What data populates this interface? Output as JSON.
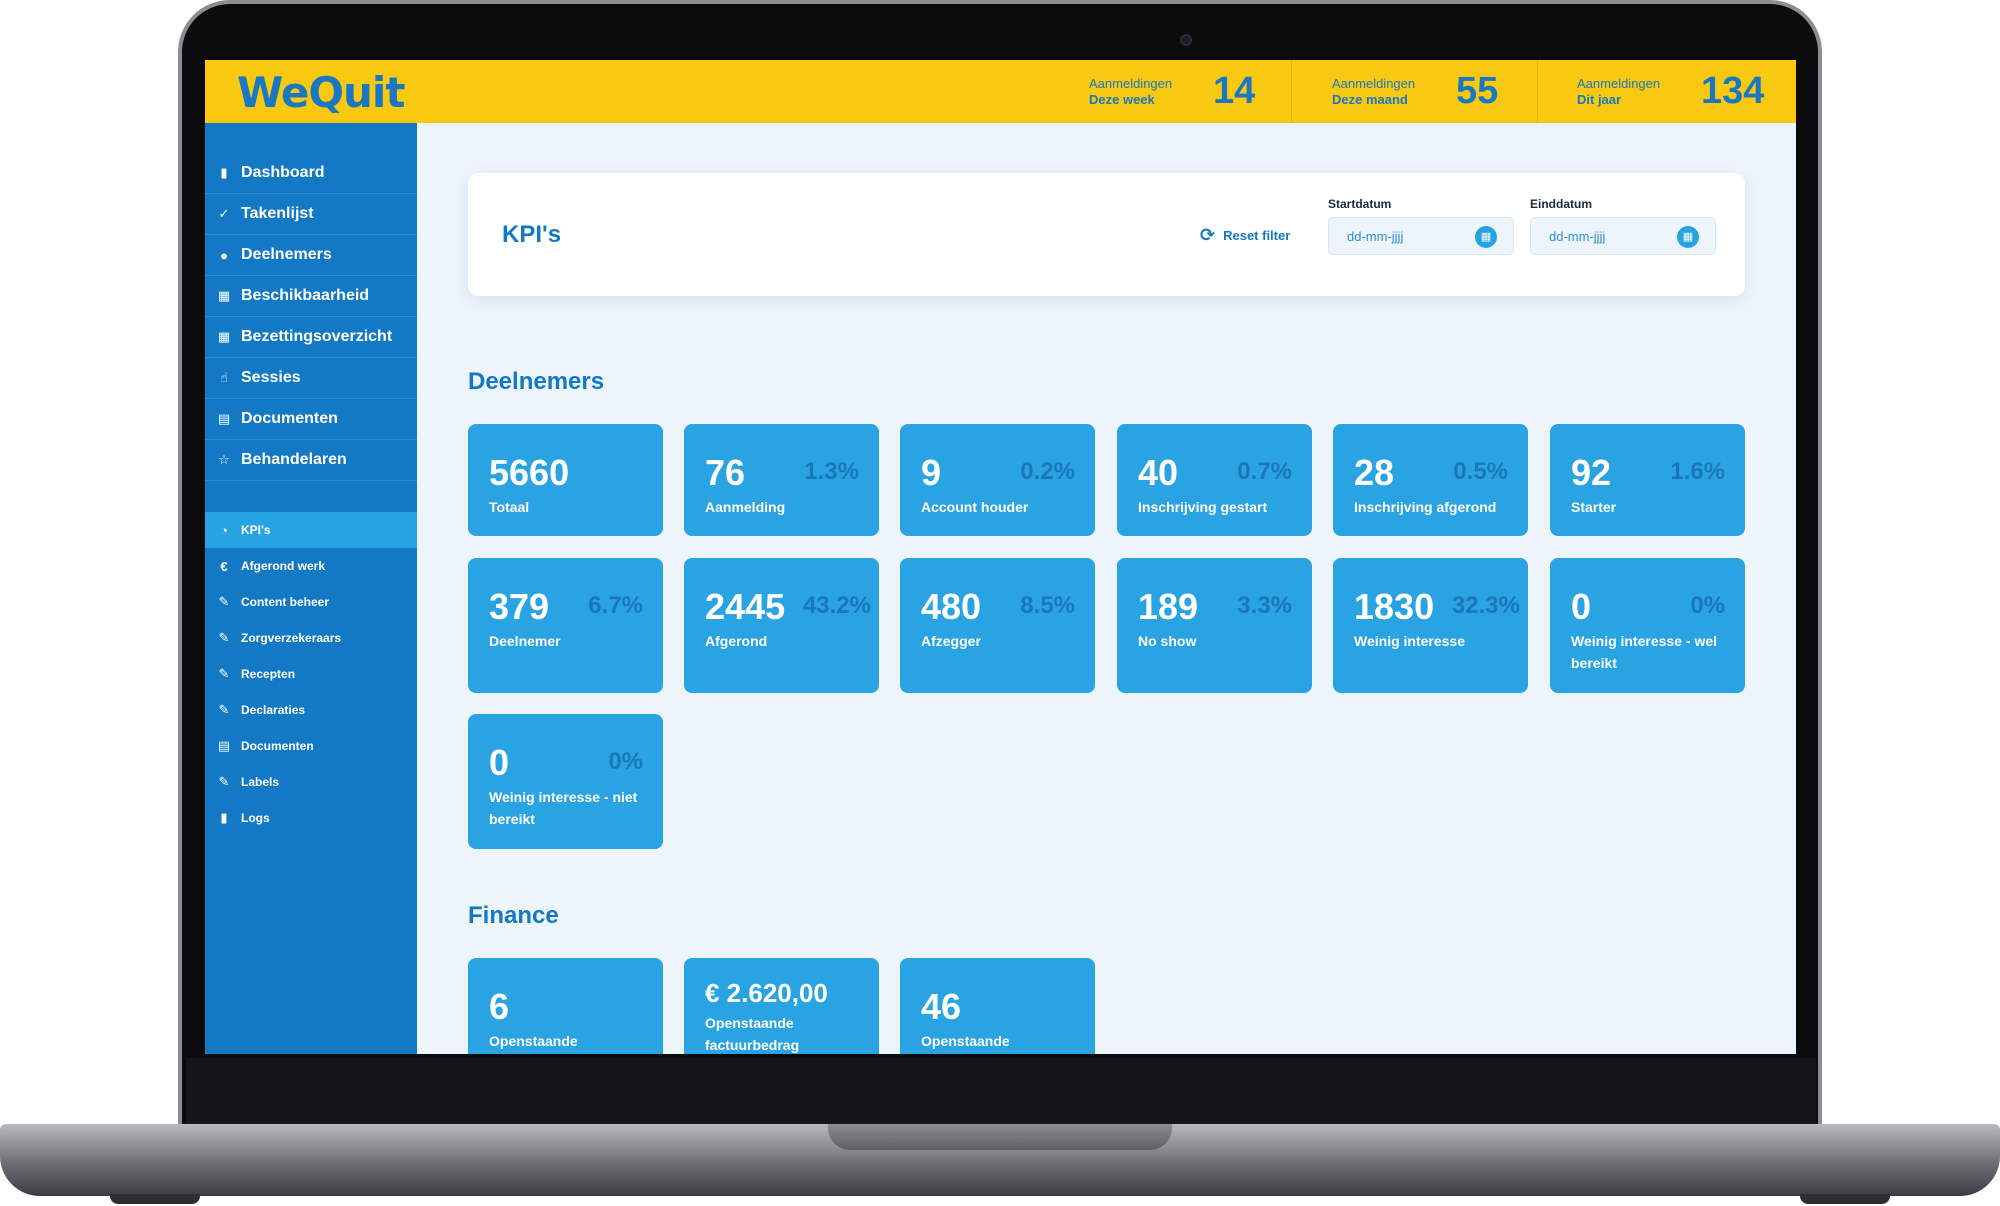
{
  "app": {
    "logo": "WeQuit",
    "stats": [
      {
        "label_line1": "Aanmeldingen",
        "label_line2": "Deze week",
        "value": "14"
      },
      {
        "label_line1": "Aanmeldingen",
        "label_line2": "Deze maand",
        "value": "55"
      },
      {
        "label_line1": "Aanmeldingen",
        "label_line2": "Dit jaar",
        "value": "134"
      }
    ]
  },
  "sidebar": {
    "primary": [
      {
        "label": "Dashboard",
        "icon": "bar-chart-icon",
        "glyph": "▮"
      },
      {
        "label": "Takenlijst",
        "icon": "check-circle-icon",
        "glyph": "✓"
      },
      {
        "label": "Deelnemers",
        "icon": "user-icon",
        "glyph": "●"
      },
      {
        "label": "Beschikbaarheid",
        "icon": "calendar-icon",
        "glyph": "▦"
      },
      {
        "label": "Bezettingsoverzicht",
        "icon": "calendar-grid-icon",
        "glyph": "▦"
      },
      {
        "label": "Sessies",
        "icon": "hand-icon",
        "glyph": "☝"
      },
      {
        "label": "Documenten",
        "icon": "document-icon",
        "glyph": "▤"
      },
      {
        "label": "Behandelaren",
        "icon": "star-icon",
        "glyph": "☆"
      }
    ],
    "secondary": [
      {
        "label": "KPI's",
        "icon": "pie-chart-icon",
        "glyph": "◔",
        "active": true
      },
      {
        "label": "Afgerond werk",
        "icon": "euro-icon",
        "glyph": "€"
      },
      {
        "label": "Content beheer",
        "icon": "edit-icon",
        "glyph": "✎"
      },
      {
        "label": "Zorgverzekeraars",
        "icon": "edit-icon",
        "glyph": "✎"
      },
      {
        "label": "Recepten",
        "icon": "edit-icon",
        "glyph": "✎"
      },
      {
        "label": "Declaraties",
        "icon": "edit-icon",
        "glyph": "✎"
      },
      {
        "label": "Documenten",
        "icon": "document-icon",
        "glyph": "▤"
      },
      {
        "label": "Labels",
        "icon": "edit-icon",
        "glyph": "✎"
      },
      {
        "label": "Logs",
        "icon": "bar-chart-icon",
        "glyph": "▮"
      }
    ]
  },
  "filter": {
    "title": "KPI's",
    "reset_label": "Reset filter",
    "start_label": "Startdatum",
    "end_label": "Einddatum",
    "start_placeholder": "dd-mm-jjjj",
    "end_placeholder": "dd-mm-jjjj"
  },
  "deelnemers": {
    "title": "Deelnemers",
    "cards": [
      {
        "value": "5660",
        "pct": "",
        "label": "Totaal"
      },
      {
        "value": "76",
        "pct": "1.3%",
        "label": "Aanmelding"
      },
      {
        "value": "9",
        "pct": "0.2%",
        "label": "Account houder"
      },
      {
        "value": "40",
        "pct": "0.7%",
        "label": "Inschrijving gestart"
      },
      {
        "value": "28",
        "pct": "0.5%",
        "label": "Inschrijving afgerond"
      },
      {
        "value": "92",
        "pct": "1.6%",
        "label": "Starter"
      },
      {
        "value": "379",
        "pct": "6.7%",
        "label": "Deelnemer"
      },
      {
        "value": "2445",
        "pct": "43.2%",
        "label": "Afgerond"
      },
      {
        "value": "480",
        "pct": "8.5%",
        "label": "Afzegger"
      },
      {
        "value": "189",
        "pct": "3.3%",
        "label": "No show"
      },
      {
        "value": "1830",
        "pct": "32.3%",
        "label": "Weinig interesse"
      },
      {
        "value": "0",
        "pct": "0%",
        "label": "Weinig interesse - wel bereikt"
      },
      {
        "value": "0",
        "pct": "0%",
        "label": "Weinig interesse - niet bereikt"
      }
    ]
  },
  "finance": {
    "title": "Finance",
    "cards": [
      {
        "value": "6",
        "label": "Openstaande"
      },
      {
        "value": "€ 2.620,00",
        "label": "Openstaande factuurbedrag"
      },
      {
        "value": "46",
        "label": "Openstaande"
      }
    ]
  }
}
